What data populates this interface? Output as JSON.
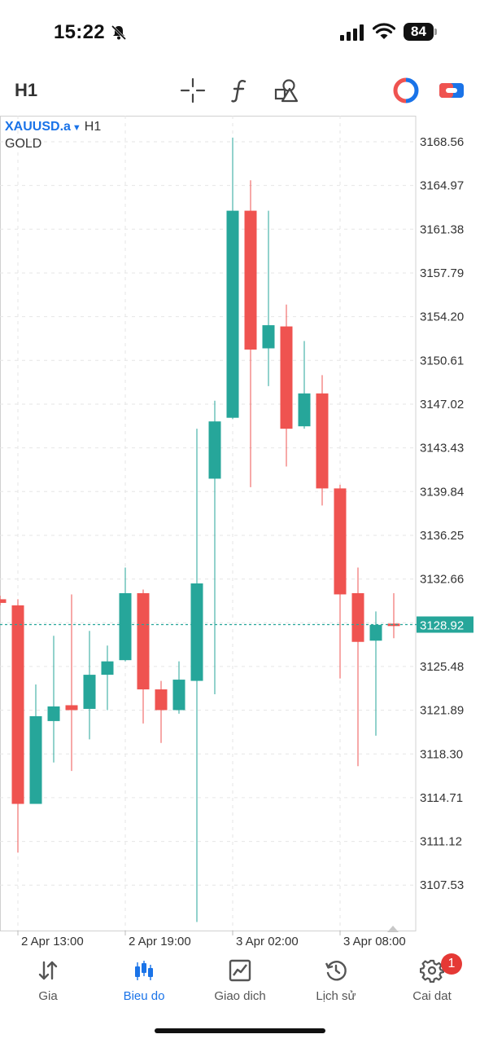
{
  "status_bar": {
    "time": "15:22",
    "battery": "84"
  },
  "toolbar": {
    "timeframe": "H1",
    "icons": [
      "crosshair-icon",
      "function-icon",
      "shapes-icon",
      "indicator-circle-icon",
      "toggle-icon"
    ]
  },
  "chart": {
    "symbol": "XAUUSD.a",
    "timeframe": "H1",
    "description": "GOLD",
    "current_price": "3128.92",
    "colors": {
      "bull": "#26a69a",
      "bear": "#ef5350",
      "grid": "#e6e6e6",
      "price_line": "#26a69a"
    }
  },
  "chart_data": {
    "type": "candlestick",
    "price_ticks": [
      "3168.56",
      "3164.97",
      "3161.38",
      "3157.79",
      "3154.20",
      "3150.61",
      "3147.02",
      "3143.43",
      "3139.84",
      "3136.25",
      "3132.66",
      "3129.07",
      "3125.48",
      "3121.89",
      "3118.30",
      "3114.71",
      "3111.12",
      "3107.53"
    ],
    "time_labels": [
      "2 Apr 13:00",
      "2 Apr 19:00",
      "3 Apr 02:00",
      "3 Apr 08:00"
    ],
    "ylim": [
      3103.8,
      3170.7
    ],
    "candles": [
      {
        "o": 3131.0,
        "h": 3131.3,
        "l": 3130.5,
        "c": 3130.7
      },
      {
        "o": 3130.5,
        "h": 3131.0,
        "l": 3110.2,
        "c": 3114.2
      },
      {
        "o": 3114.2,
        "h": 3124.0,
        "l": 3114.2,
        "c": 3121.4
      },
      {
        "o": 3121.0,
        "h": 3128.0,
        "l": 3117.6,
        "c": 3122.2
      },
      {
        "o": 3122.3,
        "h": 3131.4,
        "l": 3116.9,
        "c": 3121.9
      },
      {
        "o": 3122.0,
        "h": 3128.4,
        "l": 3119.5,
        "c": 3124.8
      },
      {
        "o": 3124.8,
        "h": 3127.2,
        "l": 3121.9,
        "c": 3125.9
      },
      {
        "o": 3126.0,
        "h": 3133.6,
        "l": 3125.9,
        "c": 3131.5
      },
      {
        "o": 3131.5,
        "h": 3131.8,
        "l": 3120.8,
        "c": 3123.6
      },
      {
        "o": 3123.6,
        "h": 3124.3,
        "l": 3119.2,
        "c": 3121.9
      },
      {
        "o": 3121.9,
        "h": 3125.9,
        "l": 3121.6,
        "c": 3124.4
      },
      {
        "o": 3124.3,
        "h": 3145.0,
        "l": 3104.5,
        "c": 3132.3
      },
      {
        "o": 3140.9,
        "h": 3147.3,
        "l": 3123.2,
        "c": 3145.6
      },
      {
        "o": 3145.9,
        "h": 3168.9,
        "l": 3145.8,
        "c": 3162.9
      },
      {
        "o": 3162.9,
        "h": 3165.4,
        "l": 3140.2,
        "c": 3151.5
      },
      {
        "o": 3151.6,
        "h": 3162.9,
        "l": 3148.5,
        "c": 3153.5
      },
      {
        "o": 3153.4,
        "h": 3155.2,
        "l": 3141.9,
        "c": 3145.0
      },
      {
        "o": 3145.2,
        "h": 3152.2,
        "l": 3145.0,
        "c": 3147.9
      },
      {
        "o": 3147.9,
        "h": 3149.4,
        "l": 3138.7,
        "c": 3140.1
      },
      {
        "o": 3140.1,
        "h": 3140.4,
        "l": 3124.5,
        "c": 3131.4
      },
      {
        "o": 3131.5,
        "h": 3133.6,
        "l": 3117.3,
        "c": 3127.5
      },
      {
        "o": 3127.6,
        "h": 3130.0,
        "l": 3119.8,
        "c": 3128.9
      },
      {
        "o": 3129.0,
        "h": 3131.5,
        "l": 3127.8,
        "c": 3128.8
      }
    ]
  },
  "nav": {
    "items": [
      {
        "label": "Gia",
        "icon": "arrows-updown-icon"
      },
      {
        "label": "Bieu do",
        "icon": "candles-icon"
      },
      {
        "label": "Giao dich",
        "icon": "trade-chart-icon"
      },
      {
        "label": "Lịch sử",
        "icon": "history-icon"
      },
      {
        "label": "Cai dat",
        "icon": "gear-icon",
        "badge": "1"
      }
    ]
  }
}
